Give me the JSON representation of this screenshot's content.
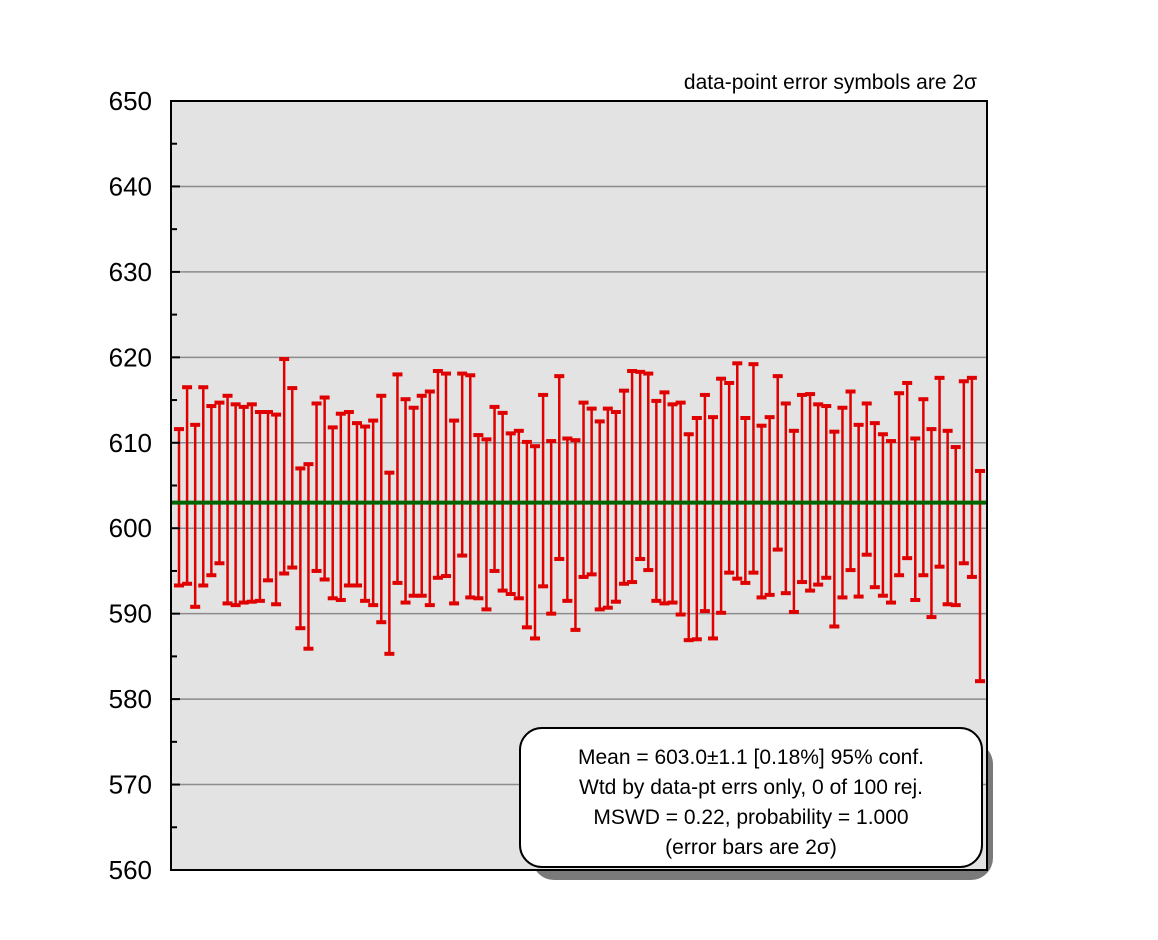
{
  "chart_data": {
    "type": "errorbar",
    "note": "data-point error symbols are 2σ",
    "ylim": [
      560,
      650
    ],
    "y_major_ticks": [
      560,
      570,
      580,
      590,
      600,
      610,
      620,
      630,
      640,
      650
    ],
    "y_tick_labels": [
      "560",
      "570",
      "580",
      "590",
      "600",
      "610",
      "620",
      "630",
      "640",
      "650"
    ],
    "grid": true,
    "mean_line": 603.0,
    "colors": {
      "bars": "#e00000",
      "mean": "#006400",
      "plot_bg": "#e3e3e3",
      "grid": "#8c8c8c"
    },
    "stats_box": {
      "placement": "bottom-right",
      "lines": [
        "Mean = 603.0±1.1  [0.18%]  95% conf.",
        "Wtd by data-pt errs only, 0 of 100 rej.",
        "MSWD = 0.22, probability = 1.000",
        "(error bars are 2σ)"
      ]
    },
    "intervals": [
      [
        593.3,
        611.6
      ],
      [
        593.5,
        616.5
      ],
      [
        590.8,
        612.1
      ],
      [
        593.3,
        616.5
      ],
      [
        594.5,
        614.3
      ],
      [
        595.9,
        614.7
      ],
      [
        591.2,
        615.5
      ],
      [
        591.0,
        614.5
      ],
      [
        591.3,
        614.2
      ],
      [
        591.4,
        614.5
      ],
      [
        591.5,
        613.6
      ],
      [
        593.9,
        613.6
      ],
      [
        591.1,
        613.3
      ],
      [
        594.7,
        619.8
      ],
      [
        595.4,
        616.4
      ],
      [
        588.3,
        607.0
      ],
      [
        585.9,
        607.5
      ],
      [
        595.0,
        614.6
      ],
      [
        594.0,
        615.3
      ],
      [
        591.8,
        611.8
      ],
      [
        591.6,
        613.4
      ],
      [
        593.3,
        613.6
      ],
      [
        593.3,
        612.3
      ],
      [
        591.5,
        611.9
      ],
      [
        591.0,
        612.6
      ],
      [
        589.0,
        615.5
      ],
      [
        585.3,
        606.5
      ],
      [
        593.6,
        618.0
      ],
      [
        591.3,
        615.1
      ],
      [
        592.1,
        614.1
      ],
      [
        592.1,
        615.5
      ],
      [
        591.0,
        616.0
      ],
      [
        594.2,
        618.4
      ],
      [
        594.4,
        618.1
      ],
      [
        591.2,
        612.6
      ],
      [
        596.8,
        618.1
      ],
      [
        591.9,
        617.9
      ],
      [
        591.8,
        610.9
      ],
      [
        590.5,
        610.4
      ],
      [
        595.0,
        614.2
      ],
      [
        592.7,
        613.5
      ],
      [
        592.3,
        611.1
      ],
      [
        591.8,
        611.4
      ],
      [
        588.4,
        610.1
      ],
      [
        587.1,
        609.6
      ],
      [
        593.2,
        615.6
      ],
      [
        590.0,
        610.2
      ],
      [
        596.4,
        617.8
      ],
      [
        591.5,
        610.5
      ],
      [
        588.1,
        610.3
      ],
      [
        594.3,
        614.7
      ],
      [
        594.6,
        614.0
      ],
      [
        590.5,
        612.5
      ],
      [
        590.7,
        614.0
      ],
      [
        591.4,
        613.6
      ],
      [
        593.5,
        616.1
      ],
      [
        593.7,
        618.4
      ],
      [
        596.4,
        618.3
      ],
      [
        595.1,
        618.1
      ],
      [
        591.5,
        614.9
      ],
      [
        591.2,
        615.9
      ],
      [
        591.3,
        614.5
      ],
      [
        589.9,
        614.7
      ],
      [
        586.9,
        611.0
      ],
      [
        587.0,
        612.9
      ],
      [
        590.3,
        615.6
      ],
      [
        587.1,
        613.0
      ],
      [
        590.1,
        617.5
      ],
      [
        594.8,
        617.0
      ],
      [
        594.1,
        619.3
      ],
      [
        593.6,
        612.9
      ],
      [
        594.8,
        619.2
      ],
      [
        591.9,
        612.0
      ],
      [
        592.2,
        613.0
      ],
      [
        597.5,
        617.8
      ],
      [
        592.4,
        614.6
      ],
      [
        590.2,
        611.4
      ],
      [
        593.7,
        615.6
      ],
      [
        592.7,
        615.7
      ],
      [
        593.4,
        614.5
      ],
      [
        594.2,
        614.3
      ],
      [
        588.5,
        611.3
      ],
      [
        591.9,
        614.1
      ],
      [
        595.1,
        616.0
      ],
      [
        592.0,
        612.1
      ],
      [
        596.9,
        614.6
      ],
      [
        593.1,
        612.3
      ],
      [
        592.1,
        611.0
      ],
      [
        591.3,
        610.2
      ],
      [
        594.5,
        615.8
      ],
      [
        596.5,
        617.0
      ],
      [
        591.6,
        610.5
      ],
      [
        594.5,
        615.1
      ],
      [
        589.6,
        611.6
      ],
      [
        595.5,
        617.6
      ],
      [
        591.1,
        611.4
      ],
      [
        591.0,
        609.5
      ],
      [
        595.9,
        617.2
      ],
      [
        594.3,
        617.6
      ],
      [
        582.1,
        606.7
      ]
    ]
  }
}
